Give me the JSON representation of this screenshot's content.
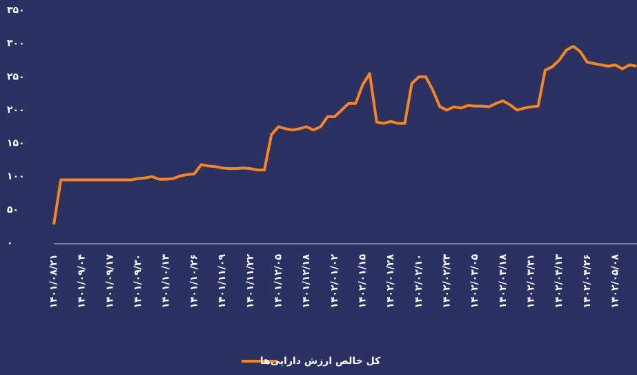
{
  "chart_data": {
    "type": "line",
    "categories": [
      "۱۴۰۱/۰۸/۲۱",
      null,
      null,
      null,
      "۱۴۰۱/۰۹/۰۴",
      null,
      null,
      null,
      "۱۴۰۱/۰۹/۱۷",
      null,
      null,
      null,
      "۱۴۰۱/۰۹/۳۰",
      null,
      null,
      null,
      "۱۴۰۱/۱۰/۱۳",
      null,
      null,
      null,
      "۱۴۰۱/۱۰/۲۶",
      null,
      null,
      null,
      "۱۴۰۱/۱۱/۰۹",
      null,
      null,
      null,
      "۱۴۰۱/۱۱/۲۲",
      null,
      null,
      null,
      "۱۴۰۱/۱۲/۰۵",
      null,
      null,
      null,
      "۱۴۰۱/۱۲/۱۸",
      null,
      null,
      null,
      "۱۴۰۲/۰۱/۰۲",
      null,
      null,
      null,
      "۱۴۰۲/۰۱/۱۵",
      null,
      null,
      null,
      "۱۴۰۲/۰۱/۲۸",
      null,
      null,
      null,
      "۱۴۰۲/۰۲/۱۰",
      null,
      null,
      null,
      "۱۴۰۲/۰۲/۲۳",
      null,
      null,
      null,
      "۱۴۰۲/۰۳/۰۵",
      null,
      null,
      null,
      "۱۴۰۲/۰۳/۱۸",
      null,
      null,
      null,
      "۱۴۰۲/۰۳/۳۱",
      null,
      null,
      null,
      "۱۴۰۲/۰۴/۱۳",
      null,
      null,
      null,
      "۱۴۰۲/۰۴/۲۶",
      null,
      null,
      null,
      "۱۴۰۲/۰۵/۰۸",
      null,
      null,
      null
    ],
    "series": [
      {
        "name": "کل خالص ارزش دارایی‌ها",
        "color": "#f7861f",
        "values": [
          28,
          95,
          95,
          95,
          95,
          95,
          95,
          95,
          95,
          95,
          95,
          95,
          97,
          98,
          100,
          96,
          96,
          97,
          101,
          103,
          104,
          118,
          116,
          115,
          113,
          112,
          112,
          113,
          112,
          110,
          110,
          163,
          175,
          172,
          170,
          172,
          175,
          170,
          175,
          190,
          190,
          200,
          210,
          210,
          238,
          255,
          182,
          180,
          183,
          180,
          180,
          240,
          250,
          250,
          230,
          205,
          200,
          205,
          203,
          207,
          206,
          206,
          205,
          210,
          214,
          208,
          200,
          203,
          205,
          206,
          260,
          265,
          275,
          290,
          296,
          288,
          272,
          270,
          268,
          266,
          268,
          262,
          268,
          266
        ]
      }
    ],
    "ylim": [
      0,
      350
    ],
    "yticks": [
      {
        "value": 0,
        "label": "۰"
      },
      {
        "value": 50,
        "label": "۵۰"
      },
      {
        "value": 100,
        "label": "۱۰۰"
      },
      {
        "value": 150,
        "label": "۱۵۰"
      },
      {
        "value": 200,
        "label": "۲۰۰"
      },
      {
        "value": 250,
        "label": "۲۵۰"
      },
      {
        "value": 300,
        "label": "۳۰۰"
      },
      {
        "value": 350,
        "label": "۳۵۰"
      }
    ],
    "grid": false,
    "legend": "bottom"
  }
}
